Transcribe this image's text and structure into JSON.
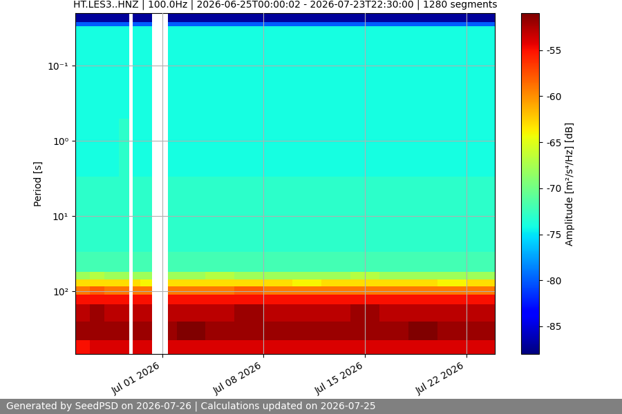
{
  "chart_data": {
    "type": "heatmap",
    "title": "HT.LES3..HNZ | 100.0Hz | 2026-06-25T00:00:02 - 2026-07-23T22:30:00 | 1280 segments",
    "y_label": "Period [s]",
    "colorbar_label": "Amplitude [m²/s⁴/Hz] [dB]",
    "footer": "Generated by SeedPSD on 2026-07-26 | Calculations updated on 2026-07-25",
    "log": "y",
    "grid": true,
    "color": "jet",
    "x": [
      "2026-06-25T00:00:00",
      "2026-06-26T00:00:00",
      "2026-06-27T00:00:00",
      "2026-06-28T00:00:00",
      "2026-06-28T17:50:00",
      "2026-06-28T23:30:00",
      "2026-06-29T12:00:00",
      "2026-06-30T07:40:00",
      "2026-07-01T10:00:00",
      "2026-07-02T00:00:00",
      "2026-07-04T00:00:00",
      "2026-07-06T00:00:00",
      "2026-07-08T00:00:00",
      "2026-07-10T00:00:00",
      "2026-07-12T00:00:00",
      "2026-07-14T00:00:00",
      "2026-07-16T00:00:00",
      "2026-07-18T00:00:00",
      "2026-07-20T00:00:00",
      "2026-07-22T00:00:00",
      "2026-07-24T00:00:00"
    ],
    "period_edges": [
      0.02,
      0.026,
      0.03,
      0.5,
      3,
      30,
      55,
      70,
      85,
      110,
      150,
      250,
      450,
      680
    ],
    "cells": [
      [
        -87,
        -80,
        -74,
        -74,
        -73,
        -72,
        -68,
        -63,
        -59,
        -55,
        -53,
        -52,
        -55
      ],
      [
        -87,
        -80,
        -74,
        -74,
        -73,
        -72,
        -67,
        -63,
        -58,
        -55,
        -52,
        -52,
        -54
      ],
      [
        -87,
        -80,
        -74,
        -74,
        -73,
        -72,
        -68,
        -63,
        -59,
        -55,
        -53,
        -52,
        -54
      ],
      [
        -87,
        -80,
        -74,
        -73,
        -73,
        -72,
        -68,
        -63,
        -59,
        -55,
        -53,
        -52,
        -54
      ],
      [
        null,
        null,
        null,
        null,
        null,
        null,
        null,
        null,
        null,
        null,
        null,
        null,
        null
      ],
      [
        -87,
        -80,
        -74,
        -74,
        -73,
        -72,
        -68,
        -63,
        -59,
        -55,
        -53,
        -52,
        -54
      ],
      [
        -87,
        -80,
        -74,
        -74,
        -73,
        -72,
        -68,
        -64,
        -59,
        -55,
        -53,
        -52,
        -54
      ],
      [
        null,
        null,
        null,
        null,
        null,
        null,
        null,
        null,
        null,
        null,
        null,
        null,
        null
      ],
      [
        -87,
        -80,
        -74,
        -74,
        -73,
        -72,
        -68,
        -63,
        -59,
        -55,
        -53,
        -52,
        -54
      ],
      [
        -87,
        -80,
        -74,
        -74,
        -73,
        -72,
        -68,
        -63,
        -59,
        -55,
        -53,
        -51,
        -54
      ],
      [
        -87,
        -80,
        -74,
        -74,
        -73,
        -72,
        -67,
        -63,
        -59,
        -55,
        -53,
        -52,
        -54
      ],
      [
        -87,
        -80,
        -74,
        -74,
        -73,
        -72,
        -68,
        -63,
        -58,
        -55,
        -52,
        -52,
        -54
      ],
      [
        -87,
        -80,
        -74,
        -74,
        -73,
        -72,
        -68,
        -63,
        -59,
        -55,
        -53,
        -52,
        -54
      ],
      [
        -87,
        -80,
        -74,
        -74,
        -73,
        -72,
        -68,
        -64,
        -59,
        -55,
        -53,
        -52,
        -54
      ],
      [
        -87,
        -80,
        -74,
        -74,
        -73,
        -72,
        -68,
        -63,
        -59,
        -55,
        -53,
        -52,
        -54
      ],
      [
        -87,
        -80,
        -74,
        -74,
        -73,
        -72,
        -67,
        -63,
        -59,
        -55,
        -52,
        -52,
        -54
      ],
      [
        -87,
        -80,
        -74,
        -74,
        -73,
        -72,
        -68,
        -63,
        -59,
        -55,
        -53,
        -52,
        -54
      ],
      [
        -87,
        -80,
        -74,
        -74,
        -73,
        -72,
        -68,
        -63,
        -59,
        -55,
        -53,
        -51,
        -54
      ],
      [
        -87,
        -80,
        -74,
        -74,
        -73,
        -72,
        -68,
        -64,
        -59,
        -55,
        -53,
        -52,
        -54
      ],
      [
        -87,
        -80,
        -74,
        -74,
        -73,
        -72,
        -68,
        -63,
        -59,
        -55,
        -53,
        -52,
        -54
      ]
    ],
    "xlim": [
      "2026-06-25T00:00:00",
      "2026-07-24T00:00:00"
    ],
    "xticks": [
      {
        "value": "2026-07-01",
        "label": "Jul 01 2026"
      },
      {
        "value": "2026-07-08",
        "label": "Jul 08 2026"
      },
      {
        "value": "2026-07-15",
        "label": "Jul 15 2026"
      },
      {
        "value": "2026-07-22",
        "label": "Jul 22 2026"
      }
    ],
    "ylim": [
      680,
      0.02
    ],
    "yticks": [
      {
        "value": 0.1,
        "label": "10⁻¹"
      },
      {
        "value": 1,
        "label": "10⁰"
      },
      {
        "value": 10,
        "label": "10¹"
      },
      {
        "value": 100,
        "label": "10²"
      }
    ],
    "colorbar_range": [
      -88,
      -51
    ],
    "colorbar_ticks": [
      -85,
      -80,
      -75,
      -70,
      -65,
      -60,
      -55
    ]
  }
}
